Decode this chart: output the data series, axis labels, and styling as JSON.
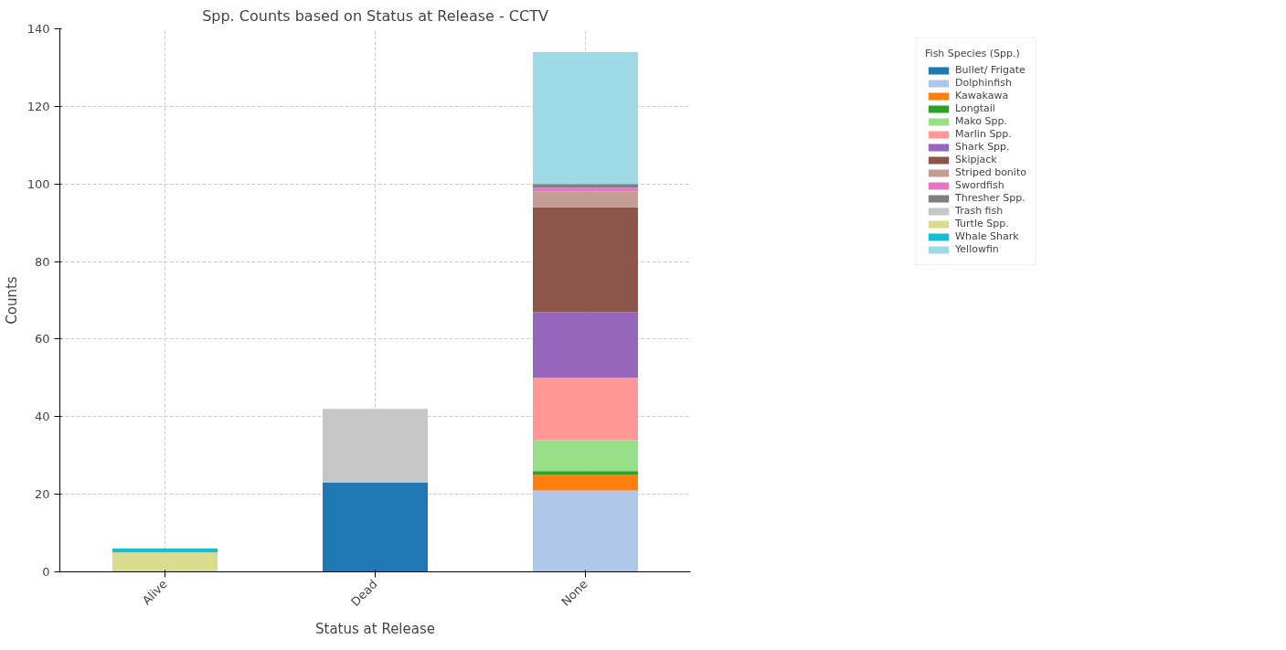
{
  "chart_data": {
    "type": "bar",
    "title": "Spp. Counts based on Status at Release - CCTV",
    "xlabel": "Status at Release",
    "ylabel": "Counts",
    "legend_title": "Fish Species (Spp.)",
    "categories": [
      "Alive",
      "Dead",
      "None"
    ],
    "stacked": true,
    "ylim": [
      0,
      140
    ],
    "yticks": [
      0,
      20,
      40,
      60,
      80,
      100,
      120,
      140
    ],
    "grid": true,
    "legend": "right",
    "series": [
      {
        "name": "Bullet/ Frigate",
        "color": "#1f77b4",
        "values": [
          0,
          23,
          0
        ]
      },
      {
        "name": "Dolphinfish",
        "color": "#aec7e8",
        "values": [
          0,
          0,
          21
        ]
      },
      {
        "name": "Kawakawa",
        "color": "#ff7f0e",
        "values": [
          0,
          0,
          4
        ]
      },
      {
        "name": "Longtail",
        "color": "#2ca02c",
        "values": [
          0,
          0,
          1
        ]
      },
      {
        "name": "Mako Spp.",
        "color": "#98df8a",
        "values": [
          0,
          0,
          8
        ]
      },
      {
        "name": "Marlin Spp.",
        "color": "#ff9896",
        "values": [
          0,
          0,
          16
        ]
      },
      {
        "name": "Shark Spp.",
        "color": "#9467bd",
        "values": [
          0,
          0,
          17
        ]
      },
      {
        "name": "Skipjack",
        "color": "#8c564b",
        "values": [
          0,
          0,
          27
        ]
      },
      {
        "name": "Striped bonito",
        "color": "#c49c94",
        "values": [
          0,
          0,
          4
        ]
      },
      {
        "name": "Swordfish",
        "color": "#e377c2",
        "values": [
          0,
          0,
          1
        ]
      },
      {
        "name": "Thresher Spp.",
        "color": "#7f7f7f",
        "values": [
          0,
          0,
          1
        ]
      },
      {
        "name": "Trash fish",
        "color": "#c7c7c7",
        "values": [
          0,
          19,
          0
        ]
      },
      {
        "name": "Turtle Spp.",
        "color": "#dbdb8d",
        "values": [
          5,
          0,
          0
        ]
      },
      {
        "name": "Whale Shark",
        "color": "#17becf",
        "values": [
          1,
          0,
          0
        ]
      },
      {
        "name": "Yellowfin",
        "color": "#9edae5",
        "values": [
          0,
          0,
          34
        ]
      }
    ]
  }
}
